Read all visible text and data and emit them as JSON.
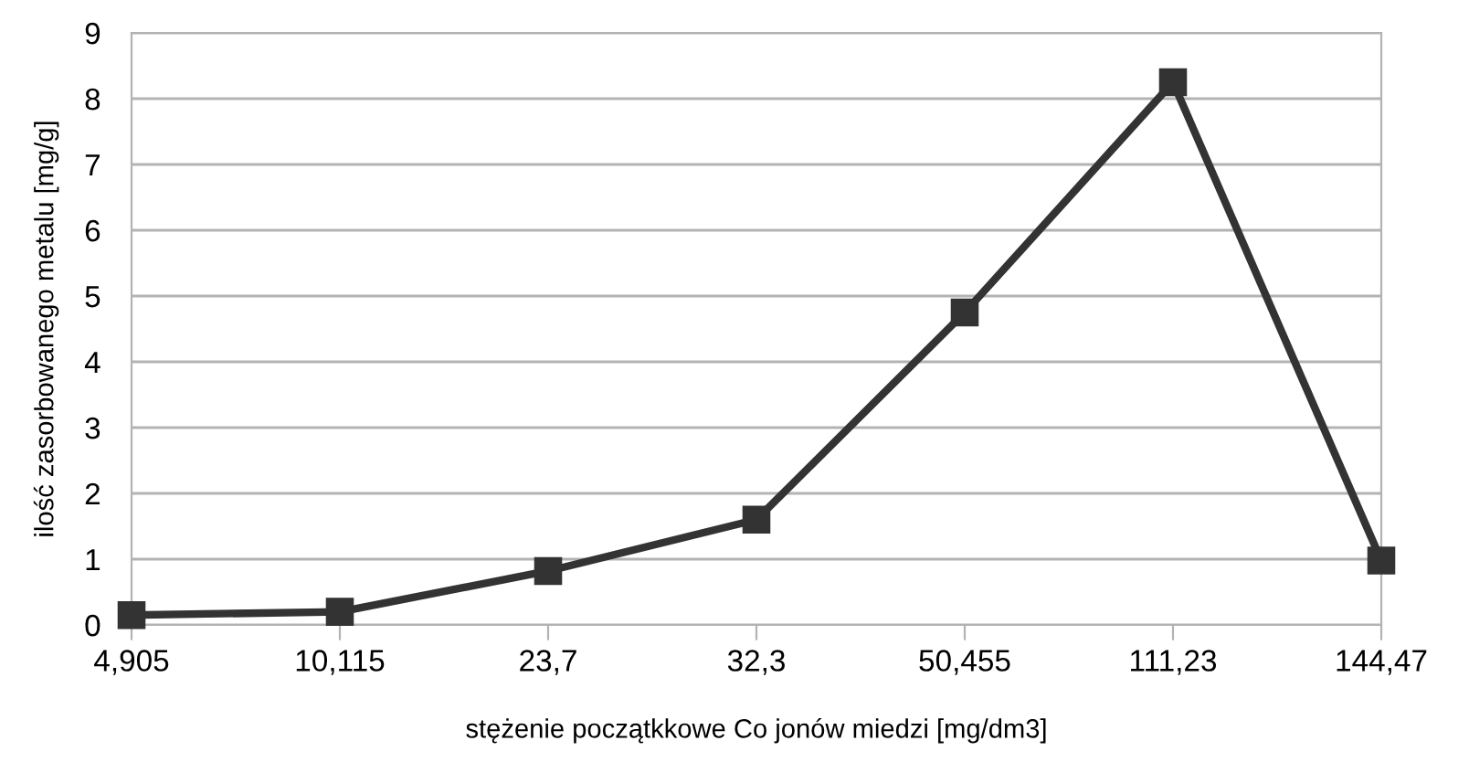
{
  "chart_data": {
    "type": "line",
    "xlabel": "stężenie początkkowe Co jonów miedzi [mg/dm3]",
    "ylabel": "ilość zasorbowanego metalu [mg/g]",
    "categories": [
      "4,905",
      "10,115",
      "23,7",
      "32,3",
      "50,455",
      "111,23",
      "144,47"
    ],
    "series": [
      {
        "color": "#333333",
        "values": [
          0.15,
          0.2,
          0.82,
          1.6,
          4.75,
          8.25,
          0.98
        ]
      }
    ],
    "ylim": [
      0,
      9
    ],
    "yticks": [
      0,
      1,
      2,
      3,
      4,
      5,
      6,
      7,
      8,
      9
    ],
    "grid": "y",
    "marker": "square",
    "line_style": "solid",
    "legend": false
  }
}
